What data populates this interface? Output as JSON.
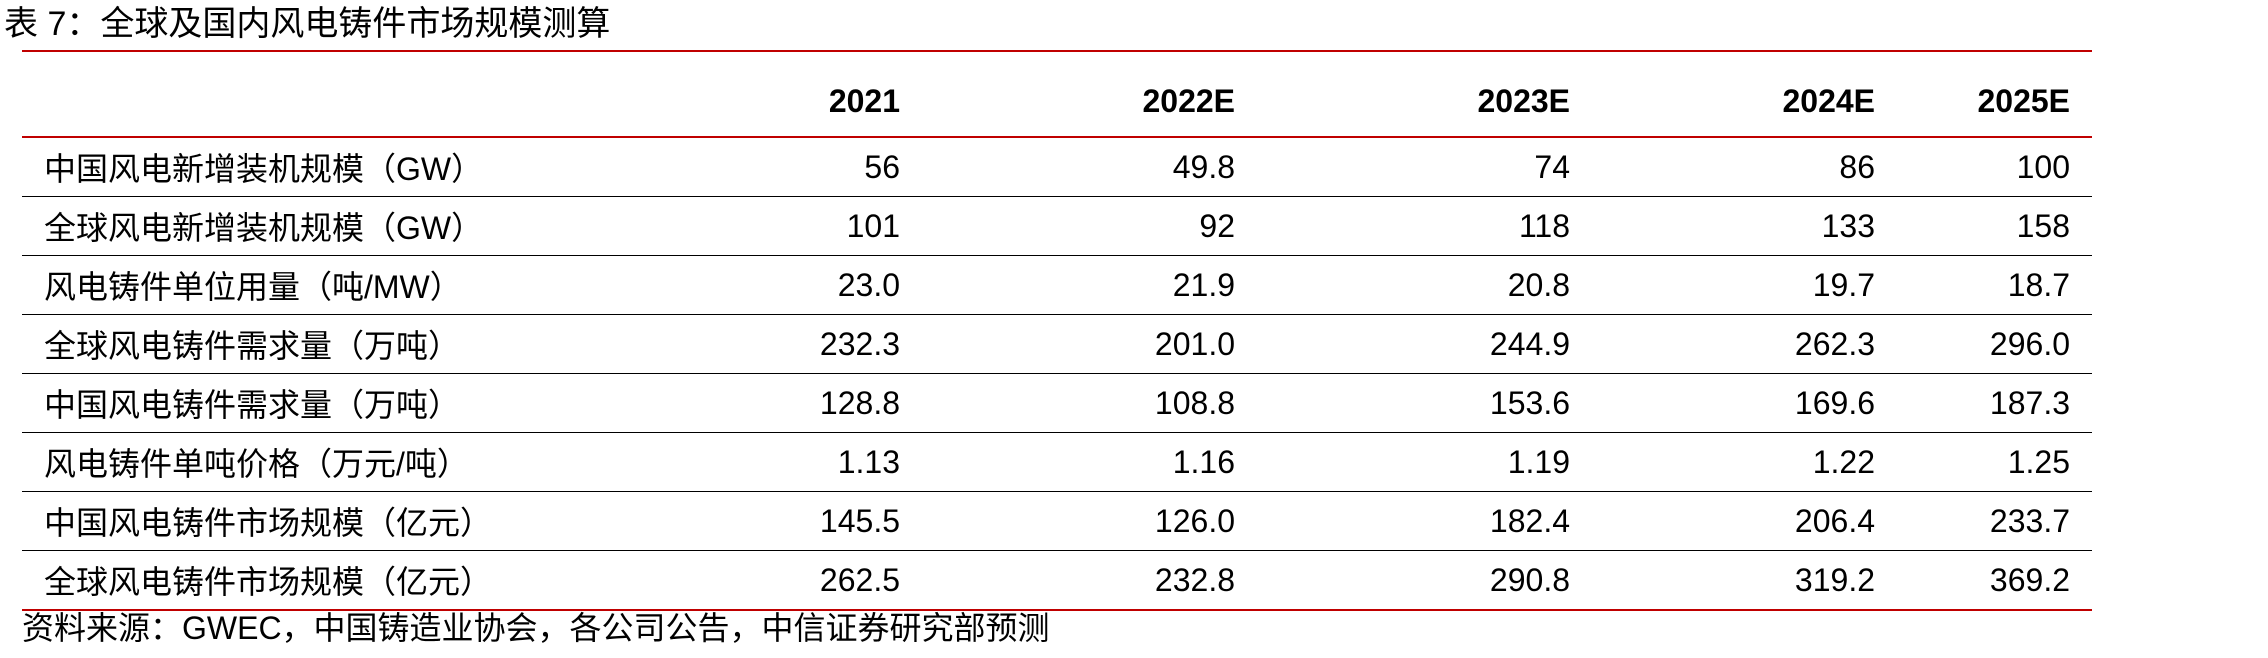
{
  "caption": "表 7：全球及国内风电铸件市场规模测算",
  "table": {
    "headers": [
      "",
      "2021",
      "2022E",
      "2023E",
      "2024E",
      "2025E"
    ],
    "rows": [
      [
        "中国风电新增装机规模（GW）",
        "56",
        "49.8",
        "74",
        "86",
        "100"
      ],
      [
        "全球风电新增装机规模（GW）",
        "101",
        "92",
        "118",
        "133",
        "158"
      ],
      [
        "风电铸件单位用量（吨/MW）",
        "23.0",
        "21.9",
        "20.8",
        "19.7",
        "18.7"
      ],
      [
        "全球风电铸件需求量（万吨）",
        "232.3",
        "201.0",
        "244.9",
        "262.3",
        "296.0"
      ],
      [
        "中国风电铸件需求量（万吨）",
        "128.8",
        "108.8",
        "153.6",
        "169.6",
        "187.3"
      ],
      [
        "风电铸件单吨价格（万元/吨）",
        "1.13",
        "1.16",
        "1.19",
        "1.22",
        "1.25"
      ],
      [
        "中国风电铸件市场规模（亿元）",
        "145.5",
        "126.0",
        "182.4",
        "206.4",
        "233.7"
      ],
      [
        "全球风电铸件市场规模（亿元）",
        "262.5",
        "232.8",
        "290.8",
        "319.2",
        "369.2"
      ]
    ]
  },
  "source": "资料来源：GWEC，中国铸造业协会，各公司公告，中信证券研究部预测",
  "colors": {
    "rule_red": "#c00000",
    "rule_black": "#000000"
  }
}
